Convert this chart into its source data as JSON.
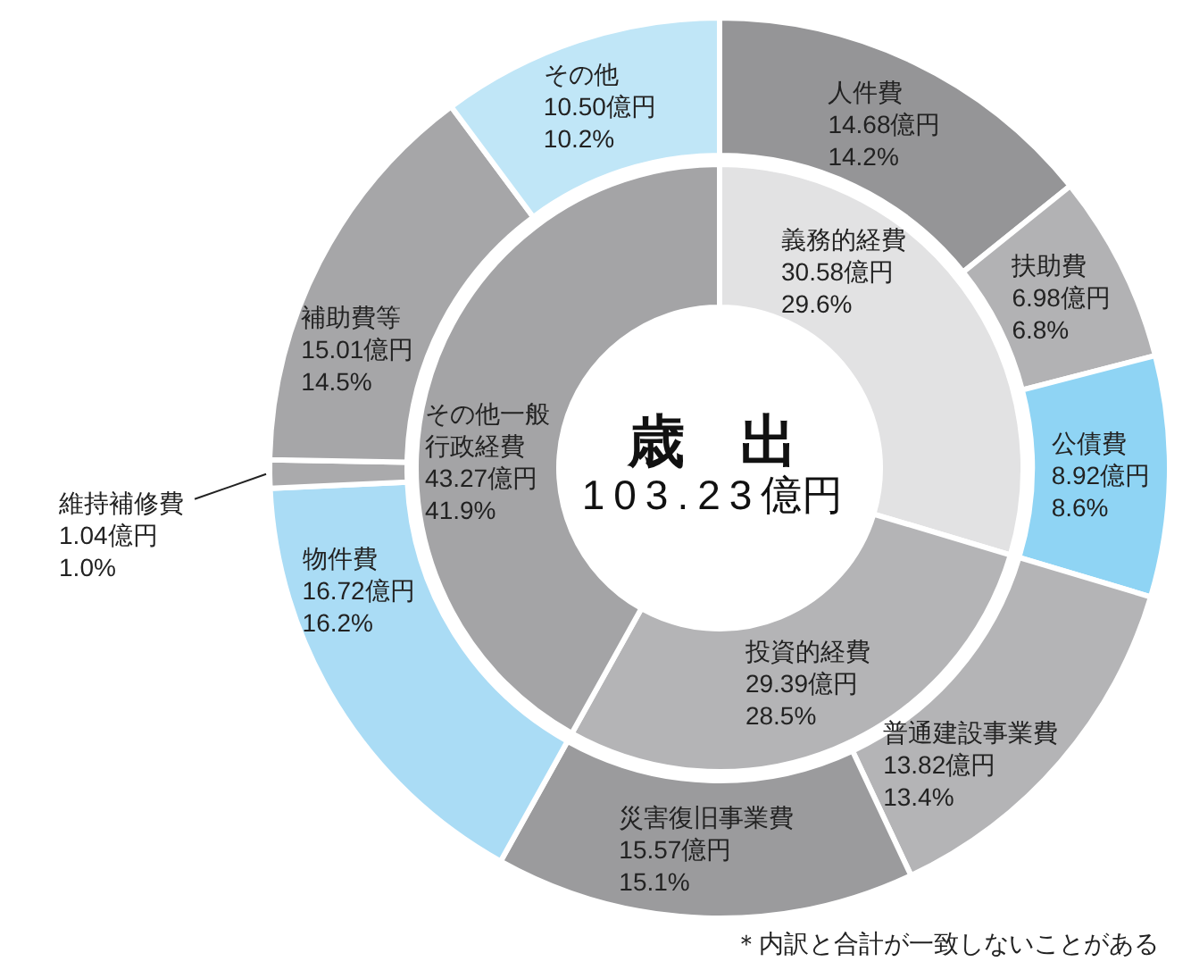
{
  "chart_data": [
    {
      "type": "donut",
      "title": "歳 出",
      "subtitle": "103.23億円",
      "categories": [
        "義務的経費",
        "投資的経費",
        "その他一般行政経費"
      ],
      "values": [
        30.58,
        29.39,
        43.27
      ],
      "colors": [
        "#e2e2e3",
        "#b4b4b6",
        "#a4a4a6"
      ],
      "value_labels": [
        "30.58億円\n29.6%",
        "29.39億円\n28.5%",
        "43.27億円\n41.9%"
      ]
    },
    {
      "type": "donut",
      "categories": [
        "人件費",
        "扶助費",
        "公債費",
        "普通建設事業費",
        "災害復旧事業費",
        "物件費",
        "維持補修費",
        "補助費等",
        "その他"
      ],
      "values": [
        14.68,
        6.98,
        8.92,
        13.82,
        15.57,
        16.72,
        1.04,
        15.01,
        10.5
      ],
      "colors": [
        "#959597",
        "#b2b2b4",
        "#8fd4f4",
        "#b4b4b6",
        "#9b9b9d",
        "#aadcf5",
        "#aaaaac",
        "#a6a6a8",
        "#c0e6f7"
      ],
      "value_labels": [
        "14.68億円\n14.2%",
        "6.98億円\n6.8%",
        "8.92億円\n8.6%",
        "13.82億円\n13.4%",
        "15.57億円\n15.1%",
        "16.72億円\n16.2%",
        "1.04億円\n1.0%",
        "15.01億円\n14.5%",
        "10.50億円\n10.2%"
      ],
      "annotations": [
        "＊内訳と合計が一致しないことがある"
      ]
    }
  ]
}
